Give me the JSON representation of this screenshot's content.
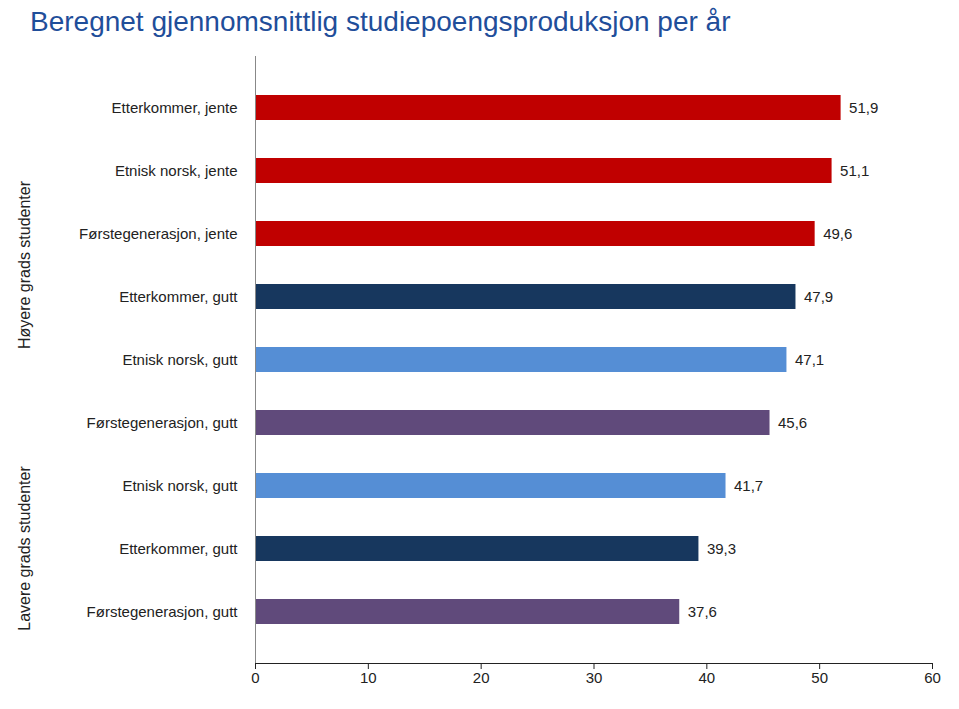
{
  "chart_data": {
    "type": "bar",
    "orientation": "horizontal",
    "title": "Beregnet gjennomsnittlig studiepoengsproduksjon per år",
    "categories": [
      "Etterkommer, jente",
      "Etnisk norsk, jente",
      "Førstegenerasjon, jente",
      "Etterkommer, gutt",
      "Etnisk norsk, gutt",
      "Førstegenerasjon, gutt",
      "Etnisk norsk, gutt",
      "Etterkommer, gutt",
      "Førstegenerasjon, gutt"
    ],
    "values": [
      51.9,
      51.1,
      49.6,
      47.9,
      47.1,
      45.6,
      41.7,
      39.3,
      37.6
    ],
    "value_labels": [
      "51,9",
      "51,1",
      "49,6",
      "47,9",
      "47,1",
      "45,6",
      "41,7",
      "39,3",
      "37,6"
    ],
    "colors": [
      "#c00000",
      "#c00000",
      "#c00000",
      "#17375e",
      "#558ed5",
      "#604a7b",
      "#558ed5",
      "#17375e",
      "#604a7b"
    ],
    "groups": [
      {
        "name": "Høyere grads studenter",
        "count": 6
      },
      {
        "name": "Lavere grads studenter",
        "count": 3
      }
    ],
    "xlim": [
      0,
      60
    ],
    "xticks": [
      0,
      10,
      20,
      30,
      40,
      50,
      60
    ],
    "data_labels": true,
    "grid": false
  }
}
